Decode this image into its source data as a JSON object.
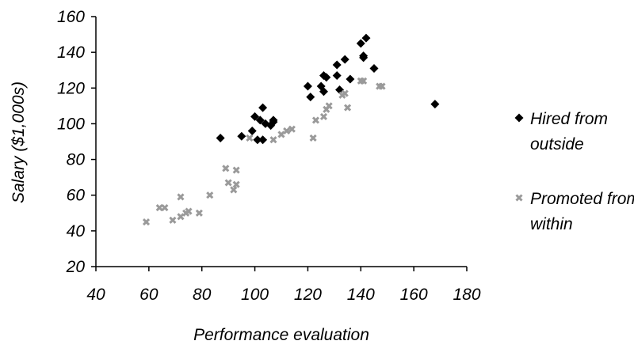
{
  "chart_data": {
    "type": "scatter",
    "xlabel": "Performance evaluation",
    "ylabel": "Salary ($1,000s)",
    "xlim": [
      40,
      180
    ],
    "ylim": [
      20,
      160
    ],
    "x_ticks": [
      40,
      60,
      80,
      100,
      120,
      140,
      160,
      180
    ],
    "y_ticks": [
      20,
      40,
      60,
      80,
      100,
      120,
      140,
      160
    ],
    "grid": false,
    "legend_position": "right",
    "series": [
      {
        "name": "Hired from outside",
        "marker": "diamond",
        "color": "#000000",
        "points": [
          [
            87,
            92
          ],
          [
            95,
            93
          ],
          [
            99,
            96
          ],
          [
            100,
            104
          ],
          [
            101,
            91
          ],
          [
            102,
            102
          ],
          [
            103,
            109
          ],
          [
            103,
            91
          ],
          [
            104,
            100
          ],
          [
            106,
            99
          ],
          [
            107,
            102
          ],
          [
            107,
            101
          ],
          [
            120,
            121
          ],
          [
            121,
            115
          ],
          [
            125,
            121
          ],
          [
            126,
            118
          ],
          [
            126,
            127
          ],
          [
            127,
            126
          ],
          [
            131,
            133
          ],
          [
            131,
            127
          ],
          [
            132,
            119
          ],
          [
            134,
            136
          ],
          [
            136,
            125
          ],
          [
            140,
            145
          ],
          [
            141,
            138
          ],
          [
            141,
            137
          ],
          [
            142,
            148
          ],
          [
            145,
            131
          ],
          [
            168,
            111
          ]
        ]
      },
      {
        "name": "Promoted from within",
        "marker": "x",
        "color": "#9a9a9a",
        "points": [
          [
            59,
            45
          ],
          [
            64,
            53
          ],
          [
            66,
            53
          ],
          [
            69,
            46
          ],
          [
            72,
            59
          ],
          [
            72,
            48
          ],
          [
            74,
            50
          ],
          [
            75,
            51
          ],
          [
            79,
            50
          ],
          [
            83,
            60
          ],
          [
            89,
            75
          ],
          [
            90,
            67
          ],
          [
            92,
            63
          ],
          [
            93,
            74
          ],
          [
            93,
            66
          ],
          [
            98,
            92
          ],
          [
            107,
            91
          ],
          [
            110,
            94
          ],
          [
            112,
            96
          ],
          [
            114,
            97
          ],
          [
            122,
            92
          ],
          [
            123,
            102
          ],
          [
            126,
            104
          ],
          [
            127,
            108
          ],
          [
            128,
            110
          ],
          [
            133,
            116
          ],
          [
            134,
            117
          ],
          [
            135,
            109
          ],
          [
            140,
            124
          ],
          [
            141,
            124
          ],
          [
            147,
            121
          ],
          [
            148,
            121
          ]
        ]
      }
    ]
  }
}
